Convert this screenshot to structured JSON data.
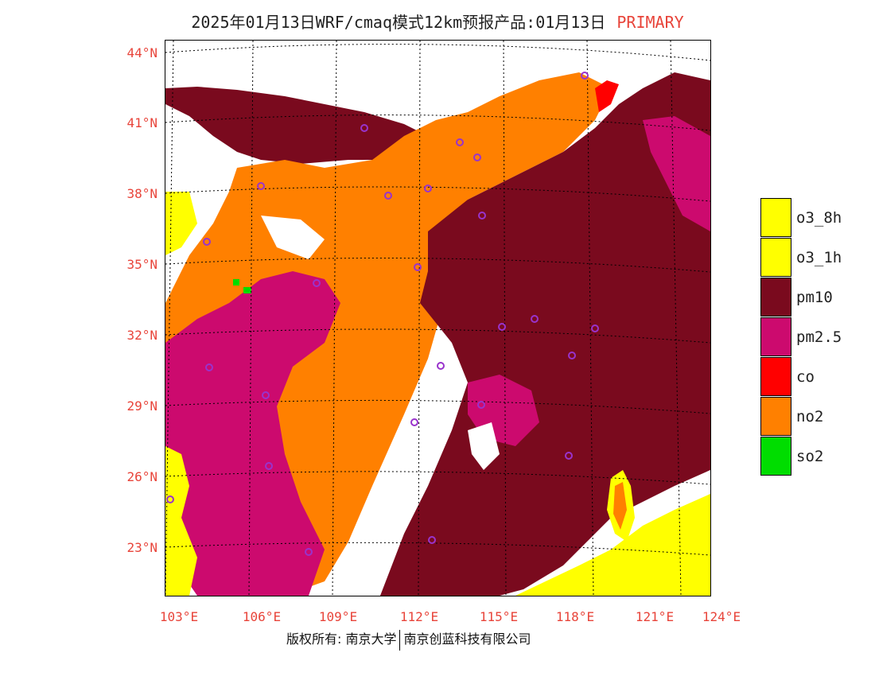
{
  "title": {
    "main": "2025年01月13日WRF/cmaq模式12km预报产品:01月13日",
    "tag": "PRIMARY"
  },
  "lat_ticks": [
    "44°N",
    "41°N",
    "38°N",
    "35°N",
    "32°N",
    "29°N",
    "26°N",
    "23°N"
  ],
  "lon_ticks": [
    "103°E",
    "106°E",
    "109°E",
    "112°E",
    "115°E",
    "118°E",
    "121°E",
    "124°E"
  ],
  "legend": [
    {
      "label": "o3_8h",
      "color": "#ffff00"
    },
    {
      "label": "o3_1h",
      "color": "#ffff00"
    },
    {
      "label": "pm10",
      "color": "#7a0a1e"
    },
    {
      "label": "pm2.5",
      "color": "#cc0a6e"
    },
    {
      "label": "co",
      "color": "#ff0000"
    },
    {
      "label": "no2",
      "color": "#ff8000"
    },
    {
      "label": "so2",
      "color": "#00dd00"
    }
  ],
  "footer": {
    "left": "版权所有: 南京大学",
    "right": "南京创蓝科技有限公司"
  }
}
